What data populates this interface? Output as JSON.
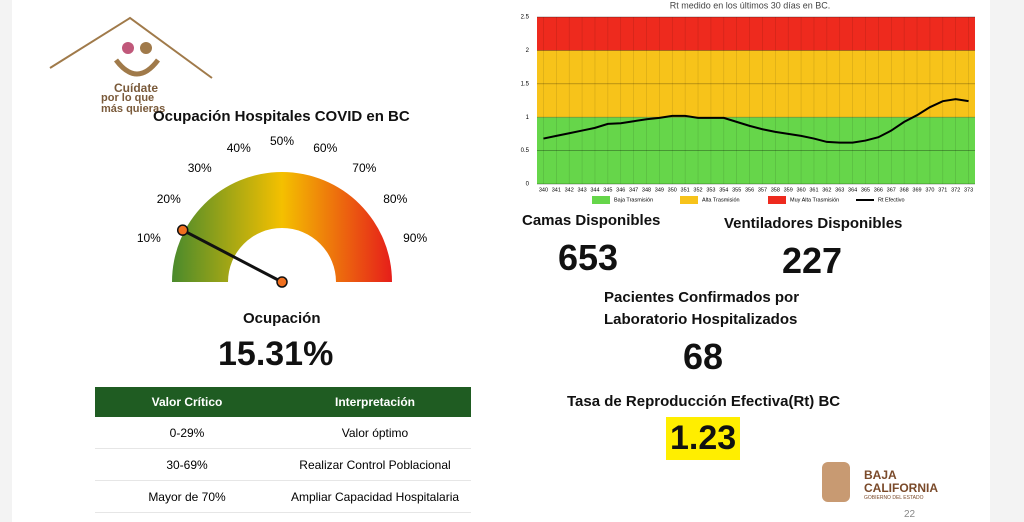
{
  "logo": {
    "line1": "Cuídate",
    "line2": "por lo que",
    "line3": "más quieras"
  },
  "chart_data": [
    {
      "type": "gauge",
      "title": "Ocupación Hospitales COVID en BC",
      "label": "Ocupación",
      "values": [
        15.31
      ],
      "value_labels": [
        "15.31%"
      ],
      "ylim": [
        0,
        100
      ],
      "yticks": [
        {
          "value": 10,
          "label": "10%"
        },
        {
          "value": 20,
          "label": "20%"
        },
        {
          "value": 30,
          "label": "30%"
        },
        {
          "value": 40,
          "label": "40%"
        },
        {
          "value": 50,
          "label": "50%"
        },
        {
          "value": 60,
          "label": "60%"
        },
        {
          "value": 70,
          "label": "70%"
        },
        {
          "value": 80,
          "label": "80%"
        },
        {
          "value": 90,
          "label": "90%"
        }
      ],
      "colors": [
        "#4a8a2c",
        "#f4c000",
        "#e61e1a"
      ]
    },
    {
      "type": "line",
      "title": "Rt medido en los últimos 30 días en BC.",
      "categories": [
        "340",
        "341",
        "342",
        "343",
        "344",
        "345",
        "346",
        "347",
        "348",
        "349",
        "350",
        "351",
        "352",
        "353",
        "354",
        "355",
        "356",
        "357",
        "358",
        "359",
        "360",
        "361",
        "362",
        "363",
        "364",
        "365",
        "366",
        "367",
        "368",
        "369",
        "370",
        "371",
        "372",
        "373"
      ],
      "bands": [
        {
          "name": "Baja Trasmisión",
          "color": "#66d64a",
          "from": 0,
          "to": 1
        },
        {
          "name": "Alta Trasmisión",
          "color": "#f7c31a",
          "from": 1,
          "to": 2
        },
        {
          "name": "Muy Alta Trasmisión",
          "color": "#ee2a1e",
          "from": 2,
          "to": 2.5
        }
      ],
      "series": [
        {
          "name": "Rt Efectivo",
          "color": "#000000",
          "values": [
            0.68,
            0.72,
            0.76,
            0.8,
            0.84,
            0.9,
            0.91,
            0.94,
            0.97,
            0.99,
            1.02,
            1.02,
            0.99,
            0.99,
            0.99,
            0.93,
            0.87,
            0.82,
            0.78,
            0.75,
            0.72,
            0.68,
            0.63,
            0.62,
            0.62,
            0.65,
            0.7,
            0.8,
            0.93,
            1.03,
            1.15,
            1.24,
            1.27,
            1.24
          ]
        }
      ],
      "ylim": [
        0,
        2.5
      ],
      "yticks": [
        0,
        0.5,
        1,
        1.5,
        2,
        2.5
      ],
      "grid": true
    }
  ],
  "stats": {
    "beds": {
      "label": "Camas Disponibles",
      "value": 653
    },
    "vents": {
      "label": "Ventiladores Disponibles",
      "value": 227
    },
    "patients": {
      "line1": "Pacientes Confirmados por",
      "line2": "Laboratorio Hospitalizados",
      "value": 68
    },
    "rt": {
      "label": "Tasa de Reproducción Efectiva(Rt) BC",
      "value": 1.23
    }
  },
  "table": {
    "header": [
      "Valor Crítico",
      "Interpretación"
    ],
    "rows": [
      [
        "0-29%",
        "Valor óptimo"
      ],
      [
        "30-69%",
        "Realizar Control Poblacional"
      ],
      [
        "Mayor de 70%",
        "Ampliar Capacidad Hospitalaria"
      ]
    ]
  },
  "footer": {
    "brand1": "BAJA",
    "brand2": "CALIFORNIA",
    "brand3": "GOBIERNO DEL ESTADO",
    "page": 22
  }
}
